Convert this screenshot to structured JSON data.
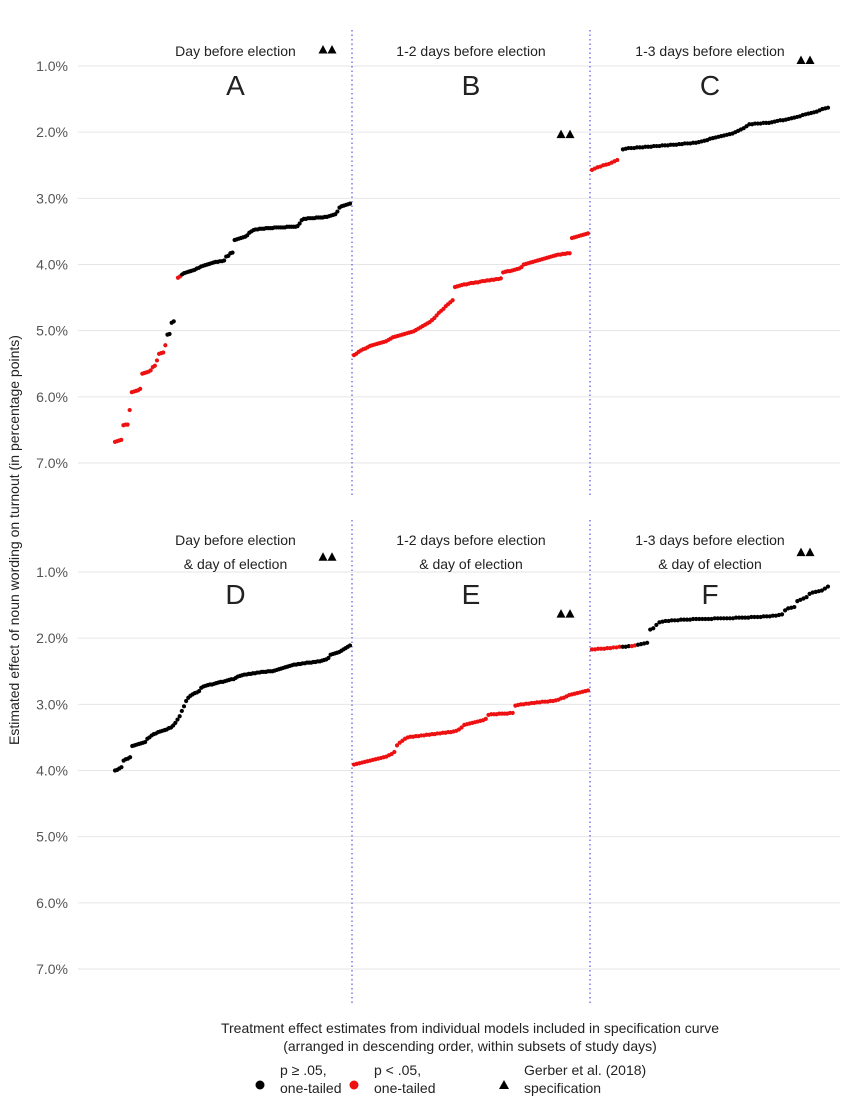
{
  "chart_data": {
    "type": "scatter",
    "ylabel": "Estimated effect of noun wording on turnout (in percentage points)",
    "xlabel_lines": [
      "Treatment effect estimates from individual models included in specification curve",
      "(arranged in descending order, within subsets of study days)"
    ],
    "yticks": [
      "7.0%",
      "6.0%",
      "5.0%",
      "4.0%",
      "3.0%",
      "2.0%",
      "1.0%"
    ],
    "ytick_values": [
      7,
      6,
      5,
      4,
      3,
      2,
      1
    ],
    "ylim": [
      0.5,
      7.2
    ],
    "colors": {
      "ns": "#000000",
      "sig": "#ee1111",
      "divider": "#3333dd",
      "grid": "#e6e6e6"
    },
    "legend": [
      {
        "symbol": "black-dot",
        "lines": [
          "p ≥ .05,",
          "one-tailed"
        ]
      },
      {
        "symbol": "red-dot",
        "lines": [
          "p < .05,",
          "one-tailed"
        ]
      },
      {
        "symbol": "triangle",
        "lines": [
          "Gerber et al. (2018)",
          "specification"
        ]
      }
    ],
    "rows": [
      {
        "panels": [
          {
            "title_lines": [
              "Day before election"
            ],
            "letter": "A",
            "triangles": [
              0.75,
              0.75
            ],
            "segments": [
              {
                "sig": true,
                "values": [
                  6.68,
                  6.67,
                  6.66,
                  6.65,
                  6.43,
                  6.42,
                  6.42,
                  6.2,
                  5.93,
                  5.92,
                  5.91,
                  5.9,
                  5.88,
                  5.65,
                  5.64,
                  5.63,
                  5.62,
                  5.6,
                  5.55,
                  5.53,
                  5.45,
                  5.35,
                  5.34,
                  5.33,
                  5.22
                ]
              },
              {
                "sig": false,
                "values": [
                  5.06,
                  5.05,
                  4.88,
                  4.86
                ]
              },
              {
                "gap": 1
              },
              {
                "sig": true,
                "values": [
                  4.2,
                  4.18
                ]
              },
              {
                "sig": false,
                "values": [
                  4.15,
                  4.13,
                  4.12,
                  4.11,
                  4.1,
                  4.09,
                  4.08,
                  4.06,
                  4.05,
                  4.03,
                  4.02,
                  4.01,
                  4.0,
                  3.99,
                  3.98,
                  3.97,
                  3.96,
                  3.96,
                  3.95,
                  3.95,
                  3.94,
                  3.88,
                  3.87,
                  3.83,
                  3.82,
                  3.63,
                  3.62,
                  3.61,
                  3.6,
                  3.59,
                  3.58,
                  3.56,
                  3.52,
                  3.5,
                  3.48,
                  3.47,
                  3.47,
                  3.46,
                  3.46,
                  3.46,
                  3.45,
                  3.45,
                  3.45,
                  3.45,
                  3.44,
                  3.44,
                  3.44,
                  3.44,
                  3.44,
                  3.44,
                  3.43,
                  3.43,
                  3.43,
                  3.43,
                  3.43,
                  3.42,
                  3.38,
                  3.33,
                  3.31,
                  3.31,
                  3.3,
                  3.3,
                  3.3,
                  3.3,
                  3.29,
                  3.29,
                  3.29,
                  3.29,
                  3.28,
                  3.28,
                  3.27,
                  3.26,
                  3.25,
                  3.24,
                  3.2,
                  3.14,
                  3.12,
                  3.11,
                  3.1,
                  3.09,
                  3.08
                ]
              }
            ]
          },
          {
            "title_lines": [
              "1-2 days before election"
            ],
            "letter": "B",
            "triangles": [
              2.03,
              2.03
            ],
            "segments": [
              {
                "sig": true,
                "values": [
                  5.37,
                  5.35,
                  5.32,
                  5.3,
                  5.28,
                  5.27,
                  5.25,
                  5.23,
                  5.22,
                  5.21,
                  5.2,
                  5.19,
                  5.18,
                  5.17,
                  5.16,
                  5.14,
                  5.12,
                  5.1,
                  5.09,
                  5.08,
                  5.07,
                  5.06,
                  5.05,
                  5.04,
                  5.03,
                  5.02,
                  5.01,
                  4.99,
                  4.97,
                  4.95,
                  4.93,
                  4.91,
                  4.89,
                  4.87,
                  4.84,
                  4.81,
                  4.77,
                  4.73,
                  4.7,
                  4.67,
                  4.63,
                  4.6,
                  4.57,
                  4.54,
                  4.34,
                  4.33,
                  4.32,
                  4.31,
                  4.3,
                  4.3,
                  4.29,
                  4.28,
                  4.28,
                  4.27,
                  4.27,
                  4.26,
                  4.25,
                  4.25,
                  4.24,
                  4.24,
                  4.23,
                  4.23,
                  4.22,
                  4.22,
                  4.21,
                  4.12,
                  4.11,
                  4.1,
                  4.1,
                  4.09,
                  4.08,
                  4.07,
                  4.06,
                  4.04,
                  4.0,
                  3.99,
                  3.98,
                  3.97,
                  3.96,
                  3.95,
                  3.94,
                  3.93,
                  3.92,
                  3.91,
                  3.9,
                  3.89,
                  3.88,
                  3.87,
                  3.86,
                  3.85,
                  3.85,
                  3.84,
                  3.84,
                  3.83,
                  3.83,
                  3.6,
                  3.59,
                  3.58,
                  3.57,
                  3.56,
                  3.55,
                  3.54,
                  3.53
                ]
              }
            ]
          },
          {
            "title_lines": [
              "1-3 days before election"
            ],
            "letter": "C",
            "triangles": [
              0.91,
              0.91
            ],
            "segments": [
              {
                "sig": true,
                "values": [
                  2.57,
                  2.55,
                  2.53,
                  2.52,
                  2.5,
                  2.49,
                  2.48,
                  2.46,
                  2.44,
                  2.42
                ]
              },
              {
                "gap": 1
              },
              {
                "sig": false,
                "values": [
                  2.26,
                  2.25,
                  2.24,
                  2.24,
                  2.24,
                  2.23,
                  2.23,
                  2.23,
                  2.22,
                  2.22,
                  2.22,
                  2.21,
                  2.21,
                  2.21,
                  2.2,
                  2.2,
                  2.2,
                  2.19,
                  2.19,
                  2.19,
                  2.18,
                  2.18,
                  2.17,
                  2.17,
                  2.17,
                  2.16,
                  2.16,
                  2.15,
                  2.14,
                  2.13,
                  2.12,
                  2.1,
                  2.09,
                  2.08,
                  2.07,
                  2.06,
                  2.05,
                  2.04,
                  2.03,
                  2.02,
                  2.0,
                  1.98,
                  1.96,
                  1.94,
                  1.91,
                  1.88,
                  1.88,
                  1.87,
                  1.87,
                  1.87,
                  1.86,
                  1.86,
                  1.86,
                  1.85,
                  1.84,
                  1.83,
                  1.82,
                  1.82,
                  1.81,
                  1.8,
                  1.79,
                  1.78,
                  1.77,
                  1.76,
                  1.74,
                  1.73,
                  1.72,
                  1.71,
                  1.7,
                  1.69,
                  1.67,
                  1.65,
                  1.64,
                  1.63
                ]
              }
            ]
          }
        ]
      },
      {
        "panels": [
          {
            "title_lines": [
              "Day before election",
              "& day of election"
            ],
            "letter": "D",
            "triangles": [
              0.77,
              0.77
            ],
            "segments": [
              {
                "sig": false,
                "values": [
                  4.0,
                  3.99,
                  3.97,
                  3.95,
                  3.85,
                  3.83,
                  3.82,
                  3.8,
                  3.63,
                  3.62,
                  3.61,
                  3.6,
                  3.59,
                  3.58,
                  3.57,
                  3.52,
                  3.5,
                  3.47,
                  3.45,
                  3.44,
                  3.42,
                  3.41,
                  3.4,
                  3.39,
                  3.38,
                  3.36,
                  3.35,
                  3.32,
                  3.28,
                  3.23,
                  3.18,
                  3.1,
                  3.03,
                  2.95,
                  2.9,
                  2.87,
                  2.85,
                  2.83,
                  2.82,
                  2.8,
                  2.75,
                  2.73,
                  2.72,
                  2.71,
                  2.7,
                  2.7,
                  2.69,
                  2.68,
                  2.67,
                  2.66,
                  2.66,
                  2.65,
                  2.64,
                  2.63,
                  2.62,
                  2.62,
                  2.6,
                  2.58,
                  2.57,
                  2.56,
                  2.55,
                  2.55,
                  2.54,
                  2.54,
                  2.53,
                  2.53,
                  2.52,
                  2.52,
                  2.51,
                  2.51,
                  2.51,
                  2.5,
                  2.5,
                  2.5,
                  2.49,
                  2.48,
                  2.47,
                  2.46,
                  2.45,
                  2.44,
                  2.43,
                  2.42,
                  2.41,
                  2.4,
                  2.4,
                  2.39,
                  2.39,
                  2.38,
                  2.38,
                  2.37,
                  2.37,
                  2.37,
                  2.36,
                  2.36,
                  2.35,
                  2.35,
                  2.34,
                  2.33,
                  2.32,
                  2.3,
                  2.25,
                  2.24,
                  2.23,
                  2.22,
                  2.21,
                  2.19,
                  2.17,
                  2.15,
                  2.13,
                  2.11
                ]
              }
            ]
          },
          {
            "title_lines": [
              "1-2 days before election",
              "& day of election"
            ],
            "letter": "E",
            "triangles": [
              1.63,
              1.63
            ],
            "segments": [
              {
                "sig": true,
                "values": [
                  3.91,
                  3.9,
                  3.89,
                  3.88,
                  3.87,
                  3.86,
                  3.85,
                  3.84,
                  3.83,
                  3.82,
                  3.81,
                  3.8,
                  3.79,
                  3.77,
                  3.75,
                  3.72,
                  3.62,
                  3.58,
                  3.55,
                  3.52,
                  3.5,
                  3.49,
                  3.49,
                  3.48,
                  3.48,
                  3.47,
                  3.47,
                  3.46,
                  3.46,
                  3.45,
                  3.45,
                  3.44,
                  3.44,
                  3.43,
                  3.43,
                  3.42,
                  3.42,
                  3.41,
                  3.4,
                  3.38,
                  3.35,
                  3.31,
                  3.3,
                  3.29,
                  3.28,
                  3.27,
                  3.26,
                  3.25,
                  3.24,
                  3.22,
                  3.16,
                  3.15,
                  3.15,
                  3.15,
                  3.14,
                  3.14,
                  3.14,
                  3.14,
                  3.13,
                  3.13,
                  3.02,
                  3.01,
                  3.0,
                  3.0,
                  2.99,
                  2.99,
                  2.98,
                  2.98,
                  2.97,
                  2.97,
                  2.96,
                  2.96,
                  2.96,
                  2.95,
                  2.95,
                  2.94,
                  2.93,
                  2.91,
                  2.9,
                  2.88,
                  2.86,
                  2.85,
                  2.84,
                  2.83,
                  2.82,
                  2.81,
                  2.8,
                  2.79
                ]
              }
            ]
          },
          {
            "title_lines": [
              "1-3 days before election",
              "& day of election"
            ],
            "letter": "F",
            "triangles": [
              0.7,
              0.7
            ],
            "segments": [
              {
                "sig": true,
                "values": [
                  2.17,
                  2.17,
                  2.16,
                  2.16,
                  2.16,
                  2.15,
                  2.15,
                  2.14,
                  2.14,
                  2.13
                ]
              },
              {
                "sig": false,
                "values": [
                  2.13,
                  2.13,
                  2.12
                ]
              },
              {
                "sig": true,
                "values": [
                  2.12,
                  2.11
                ]
              },
              {
                "sig": false,
                "values": [
                  2.1,
                  2.09,
                  2.08,
                  2.07,
                  1.87,
                  1.85,
                  1.8,
                  1.76,
                  1.75,
                  1.74,
                  1.74,
                  1.73,
                  1.73,
                  1.73,
                  1.72,
                  1.72,
                  1.72,
                  1.72,
                  1.71,
                  1.71,
                  1.71,
                  1.71,
                  1.71,
                  1.71,
                  1.71,
                  1.7,
                  1.7,
                  1.7,
                  1.7,
                  1.7,
                  1.7,
                  1.7,
                  1.69,
                  1.69,
                  1.69,
                  1.69,
                  1.69,
                  1.68,
                  1.68,
                  1.68,
                  1.68,
                  1.67,
                  1.67,
                  1.67,
                  1.66,
                  1.66,
                  1.65,
                  1.64,
                  1.58,
                  1.55,
                  1.54,
                  1.53,
                  1.44,
                  1.42,
                  1.4,
                  1.38,
                  1.33,
                  1.31,
                  1.3,
                  1.29,
                  1.28,
                  1.25,
                  1.22
                ]
              }
            ]
          }
        ]
      }
    ]
  }
}
